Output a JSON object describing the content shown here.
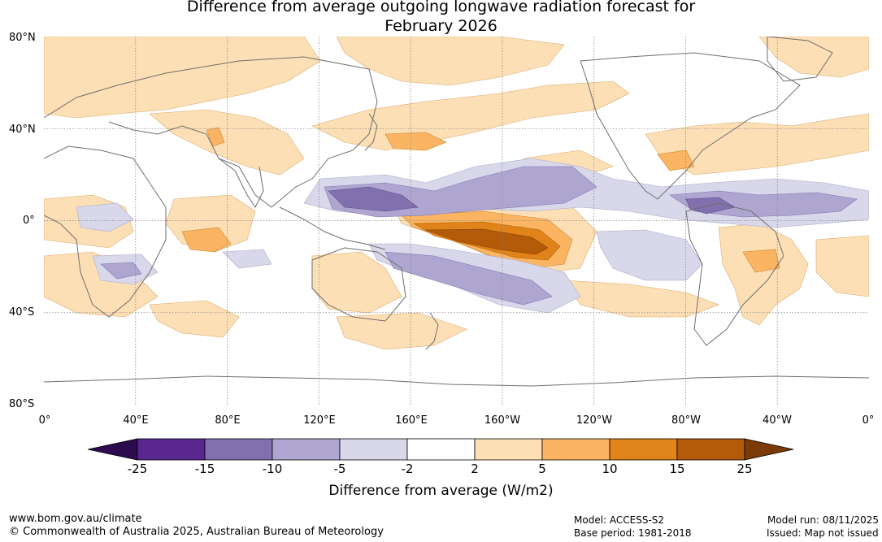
{
  "title": "Difference from average outgoing longwave radiation forecast for\nFebruary 2026",
  "lat_labels": [
    "80°N",
    "40°N",
    "0°",
    "40°S",
    "80°S"
  ],
  "lon_labels": [
    "0°",
    "40°E",
    "80°E",
    "120°E",
    "160°E",
    "160°W",
    "120°W",
    "80°W",
    "40°W",
    "0°"
  ],
  "colorbar": {
    "ticks": [
      "-25",
      "-15",
      "-10",
      "-5",
      "-2",
      "2",
      "5",
      "10",
      "15",
      "25"
    ],
    "colors": [
      "#2d0b4f",
      "#5a2690",
      "#8170ae",
      "#aea6d0",
      "#d8d8ea",
      "#ffffff",
      "#fddfb5",
      "#fbb562",
      "#e08419",
      "#b45b0a",
      "#7c3a06"
    ],
    "title": "Difference from average (W/m2)"
  },
  "footer": {
    "website": "www.bom.gov.au/climate",
    "copyright": "© Commonwealth of Australia 2025, Australian Bureau of Meteorology",
    "model": "Model: ACCESS-S2",
    "base_period": "Base period: 1981-2018",
    "model_run": "Model run: 08/11/2025",
    "issued": "Issued: Map not issued"
  },
  "map": {
    "grid_color": "#888888",
    "coast_color": "#6e6e6e"
  }
}
